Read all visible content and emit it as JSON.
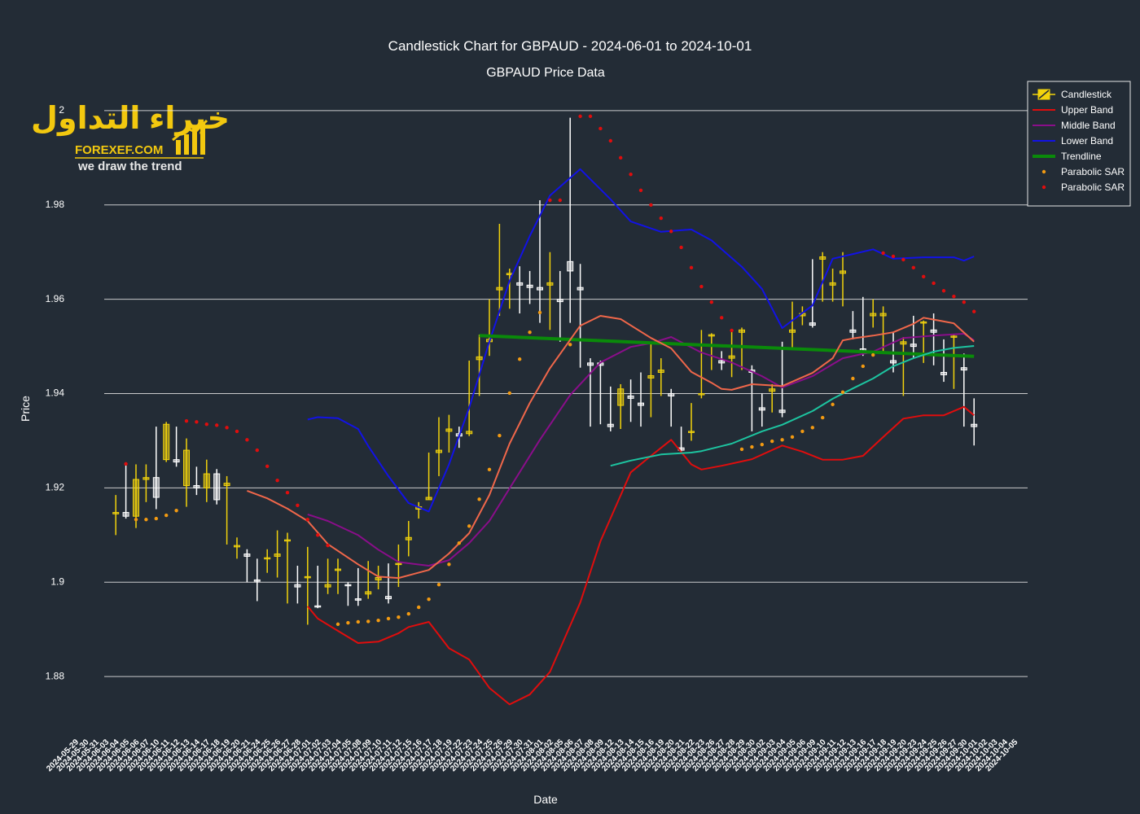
{
  "chart_data": {
    "type": "candlestick",
    "title": "Candlestick Chart for GBPAUD - 2024-06-01 to 2024-10-01",
    "subtitle": "GBPAUD Price Data",
    "xlabel": "Date",
    "ylabel": "Price",
    "logo": {
      "arabic": "خبراء التداول",
      "site": "FOREXEF.COM",
      "slogan": "we draw the trend"
    },
    "grid": true,
    "legend": "top-right",
    "ylim": [
      1.8733,
      2.0062
    ],
    "yticks": [
      1.88,
      1.9,
      1.92,
      1.94,
      1.96,
      1.98,
      2
    ],
    "categories": [
      "2024-05-29",
      "2024-05-30",
      "2024-05-31",
      "2024-06-03",
      "2024-06-04",
      "2024-06-05",
      "2024-06-06",
      "2024-06-07",
      "2024-06-10",
      "2024-06-11",
      "2024-06-12",
      "2024-06-13",
      "2024-06-14",
      "2024-06-17",
      "2024-06-18",
      "2024-06-19",
      "2024-06-20",
      "2024-06-21",
      "2024-06-24",
      "2024-06-25",
      "2024-06-26",
      "2024-06-27",
      "2024-06-28",
      "2024-07-01",
      "2024-07-02",
      "2024-07-03",
      "2024-07-04",
      "2024-07-05",
      "2024-07-08",
      "2024-07-09",
      "2024-07-10",
      "2024-07-11",
      "2024-07-12",
      "2024-07-15",
      "2024-07-16",
      "2024-07-17",
      "2024-07-18",
      "2024-07-19",
      "2024-07-22",
      "2024-07-23",
      "2024-07-24",
      "2024-07-25",
      "2024-07-26",
      "2024-07-29",
      "2024-07-30",
      "2024-07-31",
      "2024-08-01",
      "2024-08-02",
      "2024-08-05",
      "2024-08-06",
      "2024-08-07",
      "2024-08-08",
      "2024-08-09",
      "2024-08-12",
      "2024-08-13",
      "2024-08-14",
      "2024-08-15",
      "2024-08-16",
      "2024-08-19",
      "2024-08-20",
      "2024-08-21",
      "2024-08-22",
      "2024-08-23",
      "2024-08-26",
      "2024-08-27",
      "2024-08-28",
      "2024-08-29",
      "2024-08-30",
      "2024-09-02",
      "2024-09-03",
      "2024-09-04",
      "2024-09-05",
      "2024-09-06",
      "2024-09-09",
      "2024-09-10",
      "2024-09-11",
      "2024-09-12",
      "2024-09-13",
      "2024-09-16",
      "2024-09-17",
      "2024-09-18",
      "2024-09-19",
      "2024-09-20",
      "2024-09-23",
      "2024-09-24",
      "2024-09-25",
      "2024-09-26",
      "2024-09-27",
      "2024-09-30",
      "2024-10-01",
      "2024-10-02",
      "2024-10-03",
      "2024-10-04",
      "2024-10-05"
    ],
    "candles": {
      "name": "Candlestick",
      "increasing_color": "#f2d30c",
      "decreasing_color": "#ffffff",
      "open": [
        null,
        null,
        null,
        1.9145,
        1.9148,
        1.914,
        1.9218,
        1.9222,
        1.926,
        1.926,
        1.9205,
        1.9205,
        1.92,
        1.923,
        1.9205,
        1.9075,
        1.906,
        1.9005,
        1.905,
        1.9055,
        1.9088,
        1.8995,
        1.901,
        1.895,
        1.899,
        1.9025,
        1.8995,
        1.8965,
        1.8975,
        1.9005,
        1.897,
        1.9038,
        1.909,
        1.9155,
        1.9175,
        1.9275,
        1.932,
        1.9315,
        1.9315,
        1.9472,
        1.951,
        1.962,
        1.9652,
        1.9635,
        1.963,
        1.9625,
        1.963,
        1.96,
        1.968,
        1.9625,
        1.9465,
        1.9465,
        1.9335,
        1.9375,
        1.9395,
        1.938,
        1.9433,
        1.9445,
        1.94,
        1.9285,
        1.9318,
        1.9398,
        1.9522,
        1.947,
        1.9475,
        1.953,
        1.945,
        1.937,
        1.9405,
        1.9365,
        1.953,
        1.9565,
        1.955,
        1.9685,
        1.963,
        1.9655,
        1.9535,
        1.9495,
        1.9565,
        1.9565,
        1.947,
        1.9505,
        1.9505,
        1.955,
        1.9535,
        1.9445,
        1.952,
        1.9455,
        1.9335,
        null,
        null,
        null,
        null,
        null
      ],
      "high": [
        null,
        null,
        null,
        1.9185,
        1.925,
        1.925,
        1.925,
        1.933,
        1.934,
        1.933,
        1.9305,
        1.9245,
        1.926,
        1.924,
        1.9225,
        1.9095,
        1.907,
        1.905,
        1.907,
        1.911,
        1.9105,
        1.9035,
        1.9075,
        1.9035,
        1.905,
        1.905,
        1.9,
        1.903,
        1.9045,
        1.9035,
        1.904,
        1.908,
        1.913,
        1.917,
        1.9275,
        1.935,
        1.9355,
        1.933,
        1.947,
        1.9525,
        1.96,
        1.976,
        1.9665,
        1.967,
        1.966,
        1.981,
        1.97,
        1.966,
        1.9985,
        1.9675,
        1.9475,
        1.947,
        1.9415,
        1.942,
        1.943,
        1.9445,
        1.951,
        1.9475,
        1.941,
        1.933,
        1.938,
        1.9535,
        1.9528,
        1.949,
        1.9535,
        1.954,
        1.946,
        1.94,
        1.942,
        1.951,
        1.9595,
        1.9585,
        1.9685,
        1.97,
        1.9665,
        1.97,
        1.9575,
        1.9605,
        1.96,
        1.9585,
        1.953,
        1.952,
        1.9565,
        1.9555,
        1.957,
        1.9515,
        1.9525,
        1.9485,
        1.939,
        null,
        null,
        null,
        null,
        null
      ],
      "low": [
        null,
        null,
        null,
        1.91,
        1.9135,
        1.9115,
        1.917,
        1.9155,
        1.9255,
        1.9245,
        1.916,
        1.9185,
        1.917,
        1.9165,
        1.908,
        1.905,
        1.9,
        1.896,
        1.902,
        1.901,
        1.8955,
        1.8955,
        1.891,
        1.8945,
        1.8975,
        1.8975,
        1.895,
        1.895,
        1.8965,
        1.8985,
        1.8955,
        1.899,
        1.9055,
        1.9135,
        1.9175,
        1.9225,
        1.9275,
        1.9285,
        1.931,
        1.9395,
        1.948,
        1.9565,
        1.958,
        1.957,
        1.959,
        1.955,
        1.9535,
        1.951,
        1.955,
        1.9455,
        1.933,
        1.9335,
        1.932,
        1.9325,
        1.934,
        1.933,
        1.935,
        1.9395,
        1.933,
        1.9275,
        1.93,
        1.939,
        1.945,
        1.945,
        1.9435,
        1.945,
        1.932,
        1.933,
        1.936,
        1.935,
        1.9495,
        1.9545,
        1.954,
        1.9595,
        1.9595,
        1.9585,
        1.9515,
        1.948,
        1.954,
        1.9485,
        1.9445,
        1.9395,
        1.9475,
        1.9465,
        1.946,
        1.9425,
        1.941,
        1.933,
        1.929,
        null,
        null,
        null,
        null,
        null
      ],
      "close": [
        null,
        null,
        null,
        1.9148,
        1.914,
        1.9218,
        1.9222,
        1.918,
        1.9335,
        1.9255,
        1.928,
        1.92,
        1.923,
        1.9175,
        1.921,
        1.9078,
        1.9055,
        1.9002,
        1.9052,
        1.906,
        1.909,
        1.899,
        1.9012,
        1.8948,
        1.8995,
        1.9028,
        1.8993,
        1.8962,
        1.898,
        1.901,
        1.8965,
        1.904,
        1.9095,
        1.916,
        1.918,
        1.928,
        1.9325,
        1.931,
        1.932,
        1.9478,
        1.9515,
        1.9625,
        1.9655,
        1.963,
        1.9625,
        1.962,
        1.9635,
        1.9595,
        1.966,
        1.962,
        1.946,
        1.946,
        1.933,
        1.941,
        1.939,
        1.9375,
        1.9438,
        1.945,
        1.9395,
        1.928,
        1.932,
        1.94,
        1.9525,
        1.9465,
        1.948,
        1.9535,
        1.9445,
        1.9365,
        1.941,
        1.936,
        1.9535,
        1.957,
        1.9545,
        1.969,
        1.9635,
        1.966,
        1.953,
        1.949,
        1.957,
        1.957,
        1.9465,
        1.951,
        1.95,
        1.9552,
        1.953,
        1.944,
        1.9522,
        1.945,
        1.933,
        null,
        null,
        null,
        null,
        null
      ]
    },
    "series": [
      {
        "name": "Upper Band",
        "color": "#e00d0d",
        "mode": "line",
        "width": 2,
        "x": [
          "2024-06-28",
          "2024-07-01",
          "2024-07-03",
          "2024-07-05",
          "2024-07-09",
          "2024-07-11",
          "2024-07-12",
          "2024-07-16",
          "2024-07-18",
          "2024-07-22",
          "2024-07-24",
          "2024-07-26",
          "2024-07-30",
          "2024-08-01",
          "2024-08-06",
          "2024-08-08",
          "2024-08-13",
          "2024-08-15",
          "2024-08-19",
          "2024-08-21",
          "2024-08-22",
          "2024-08-26",
          "2024-08-29",
          "2024-09-03",
          "2024-09-05",
          "2024-09-09",
          "2024-09-11",
          "2024-09-13",
          "2024-09-17",
          "2024-09-19",
          "2024-09-23",
          "2024-09-25",
          "2024-09-27",
          "2024-09-30"
        ],
        "values": [
          1.8949,
          1.8923,
          1.8897,
          1.8871,
          1.8874,
          1.8892,
          1.8905,
          1.8916,
          1.886,
          1.8836,
          1.8776,
          1.8741,
          1.8762,
          1.881,
          1.8957,
          1.9087,
          1.9233,
          1.9268,
          1.9302,
          1.925,
          1.9239,
          1.9247,
          1.9261,
          1.929,
          1.9277,
          1.926,
          1.926,
          1.9268,
          1.9308,
          1.9347,
          1.9354,
          1.9354,
          1.9372,
          1.9354
        ]
      },
      {
        "name": "Middle Band",
        "color": "#8a0e8a",
        "mode": "line",
        "width": 2,
        "x": [
          "2024-06-28",
          "2024-07-02",
          "2024-07-05",
          "2024-07-09",
          "2024-07-11",
          "2024-07-16",
          "2024-07-18",
          "2024-07-22",
          "2024-07-24",
          "2024-07-26",
          "2024-07-31",
          "2024-08-05",
          "2024-08-08",
          "2024-08-13",
          "2024-08-15",
          "2024-08-19",
          "2024-08-22",
          "2024-08-27",
          "2024-08-30",
          "2024-09-03",
          "2024-09-06",
          "2024-09-11",
          "2024-09-16",
          "2024-09-19",
          "2024-09-24",
          "2024-09-27",
          "2024-09-30"
        ],
        "values": [
          1.9144,
          1.913,
          1.91,
          1.9069,
          1.9043,
          1.9035,
          1.9047,
          1.9083,
          1.913,
          1.9199,
          1.9302,
          1.9397,
          1.9466,
          1.9499,
          1.9507,
          1.952,
          1.9487,
          1.9466,
          1.9437,
          1.9413,
          1.9437,
          1.9475,
          1.9489,
          1.9518,
          1.9523,
          1.9527,
          1.9513
        ]
      },
      {
        "name": "Lower Band",
        "color": "#1212e6",
        "mode": "line",
        "width": 2,
        "x": [
          "2024-06-28",
          "2024-07-01",
          "2024-07-03",
          "2024-07-05",
          "2024-07-08",
          "2024-07-10",
          "2024-07-12",
          "2024-07-16",
          "2024-07-18",
          "2024-07-22",
          "2024-07-24",
          "2024-07-26",
          "2024-07-30",
          "2024-08-01",
          "2024-08-06",
          "2024-08-09",
          "2024-08-13",
          "2024-08-16",
          "2024-08-21",
          "2024-08-23",
          "2024-08-28",
          "2024-08-30",
          "2024-09-03",
          "2024-09-06",
          "2024-09-10",
          "2024-09-12",
          "2024-09-16",
          "2024-09-18",
          "2024-09-23",
          "2024-09-26",
          "2024-09-27",
          "2024-09-30"
        ],
        "values": [
          1.9345,
          1.935,
          1.9348,
          1.9325,
          1.9289,
          1.9225,
          1.9168,
          1.915,
          1.925,
          1.937,
          1.951,
          1.9639,
          1.9734,
          1.982,
          1.9876,
          1.9812,
          1.9765,
          1.9743,
          1.9748,
          1.9725,
          1.9669,
          1.9622,
          1.9539,
          1.9587,
          1.9686,
          1.9696,
          1.9706,
          1.9686,
          1.9689,
          1.9689,
          1.9682,
          1.9691
        ]
      },
      {
        "name": "Trendline",
        "color": "#0a8a0a",
        "mode": "line",
        "width": 4,
        "x": [
          "2024-07-23",
          "2024-09-30"
        ],
        "values": [
          1.9523,
          1.9479
        ]
      },
      {
        "color": "#f0674a",
        "mode": "line",
        "width": 2,
        "x": [
          "2024-06-20",
          "2024-06-24",
          "2024-06-26",
          "2024-06-28",
          "2024-07-02",
          "2024-07-05",
          "2024-07-09",
          "2024-07-11",
          "2024-07-16",
          "2024-07-18",
          "2024-07-22",
          "2024-07-24",
          "2024-07-26",
          "2024-07-30",
          "2024-08-01",
          "2024-08-06",
          "2024-08-08",
          "2024-08-12",
          "2024-08-15",
          "2024-08-19",
          "2024-08-21",
          "2024-08-23",
          "2024-08-26",
          "2024-08-27",
          "2024-08-29",
          "2024-09-03",
          "2024-09-06",
          "2024-09-10",
          "2024-09-11",
          "2024-09-12",
          "2024-09-16",
          "2024-09-18",
          "2024-09-20",
          "2024-09-23",
          "2024-09-25",
          "2024-09-26",
          "2024-09-30"
        ],
        "values": [
          1.9194,
          1.9178,
          1.9156,
          1.913,
          1.9081,
          1.9038,
          1.9012,
          1.9009,
          1.9026,
          1.9061,
          1.9104,
          1.9185,
          1.9294,
          1.938,
          1.9454,
          1.9544,
          1.9565,
          1.9558,
          1.9518,
          1.9496,
          1.9446,
          1.9423,
          1.941,
          1.9408,
          1.942,
          1.9416,
          1.9444,
          1.9475,
          1.9513,
          1.9517,
          1.9523,
          1.953,
          1.9548,
          1.9561,
          1.9553,
          1.9549,
          1.951
        ]
      },
      {
        "color": "#1dc4a0",
        "mode": "line",
        "width": 2,
        "x": [
          "2024-08-09",
          "2024-08-13",
          "2024-08-16",
          "2024-08-21",
          "2024-08-22",
          "2024-08-27",
          "2024-08-30",
          "2024-09-03",
          "2024-09-06",
          "2024-09-10",
          "2024-09-12",
          "2024-09-16",
          "2024-09-18",
          "2024-09-20",
          "2024-09-24",
          "2024-09-26",
          "2024-09-30"
        ],
        "values": [
          1.9247,
          1.9258,
          1.9271,
          1.9275,
          1.9278,
          1.9294,
          1.932,
          1.9334,
          1.9363,
          1.9389,
          1.9411,
          1.9432,
          1.9458,
          1.9475,
          1.9489,
          1.9497,
          1.9501
        ]
      },
      {
        "name": "Parabolic SAR",
        "color": "#f29a12",
        "mode": "markers",
        "x": [
          "2024-06-05",
          "2024-06-06",
          "2024-06-07",
          "2024-06-10",
          "2024-06-11",
          "2024-07-03",
          "2024-07-04",
          "2024-07-05",
          "2024-07-08",
          "2024-07-09",
          "2024-07-10",
          "2024-07-11",
          "2024-07-12",
          "2024-07-15",
          "2024-07-16",
          "2024-07-17",
          "2024-07-18",
          "2024-07-19",
          "2024-07-22",
          "2024-07-23",
          "2024-07-24",
          "2024-07-25",
          "2024-07-26",
          "2024-07-29",
          "2024-07-30",
          "2024-07-31",
          "2024-08-05",
          "2024-08-28",
          "2024-08-29",
          "2024-08-30",
          "2024-09-02",
          "2024-09-03",
          "2024-09-04",
          "2024-09-05",
          "2024-09-06",
          "2024-09-09",
          "2024-09-10",
          "2024-09-11",
          "2024-09-12",
          "2024-09-13",
          "2024-09-16"
        ],
        "values": [
          1.9133,
          1.9133,
          1.9135,
          1.9142,
          1.9152,
          1.8911,
          1.8914,
          1.8916,
          1.8917,
          1.8919,
          1.8923,
          1.8926,
          1.8933,
          1.8947,
          1.8964,
          1.8995,
          1.9038,
          1.9083,
          1.9119,
          1.9176,
          1.9239,
          1.9311,
          1.9401,
          1.9473,
          1.953,
          1.9572,
          1.9504,
          1.9282,
          1.9287,
          1.9292,
          1.9299,
          1.9302,
          1.9308,
          1.932,
          1.9328,
          1.9349,
          1.9377,
          1.9403,
          1.9432,
          1.9458,
          1.9482
        ]
      },
      {
        "name": "Parabolic SAR",
        "color": "#e00d0d",
        "mode": "markers",
        "x": [
          "2024-06-04",
          "2024-06-12",
          "2024-06-13",
          "2024-06-14",
          "2024-06-17",
          "2024-06-18",
          "2024-06-19",
          "2024-06-20",
          "2024-06-21",
          "2024-06-24",
          "2024-06-25",
          "2024-06-26",
          "2024-06-27",
          "2024-06-28",
          "2024-07-01",
          "2024-07-02",
          "2024-08-01",
          "2024-08-02",
          "2024-08-06",
          "2024-08-07",
          "2024-08-08",
          "2024-08-09",
          "2024-08-12",
          "2024-08-13",
          "2024-08-14",
          "2024-08-15",
          "2024-08-16",
          "2024-08-19",
          "2024-08-20",
          "2024-08-21",
          "2024-08-22",
          "2024-08-23",
          "2024-08-26",
          "2024-08-27",
          "2024-09-17",
          "2024-09-18",
          "2024-09-19",
          "2024-09-20",
          "2024-09-23",
          "2024-09-24",
          "2024-09-25",
          "2024-09-26",
          "2024-09-27",
          "2024-09-30"
        ],
        "values": [
          1.9251,
          1.9342,
          1.934,
          1.9335,
          1.9333,
          1.9328,
          1.932,
          1.9302,
          1.928,
          1.9246,
          1.9216,
          1.919,
          1.9163,
          1.9133,
          1.91,
          1.9078,
          1.981,
          1.981,
          1.9988,
          1.9988,
          1.9962,
          1.9936,
          1.99,
          1.9865,
          1.9831,
          1.98,
          1.9772,
          1.9744,
          1.971,
          1.9667,
          1.9627,
          1.9594,
          1.9561,
          1.9534,
          1.9698,
          1.9691,
          1.9684,
          1.9667,
          1.9648,
          1.9634,
          1.9618,
          1.9606,
          1.9594,
          1.9574
        ]
      }
    ]
  }
}
